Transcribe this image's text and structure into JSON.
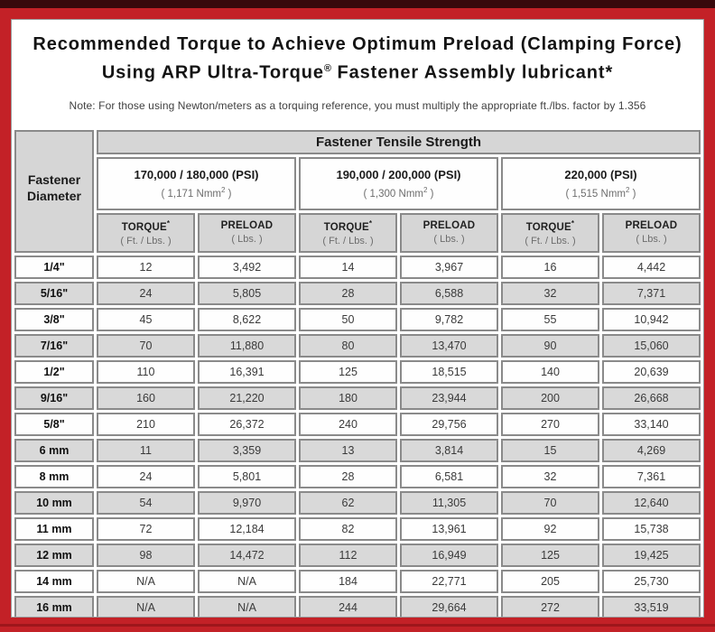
{
  "colors": {
    "frame_red": "#c32127",
    "top_band_dark_red": "#38090c",
    "bottom_line_red": "#9e161b",
    "header_gray": "#d6d6d6",
    "row_shade_gray": "#d9d9d9",
    "cell_border_gray": "#8a8a8a"
  },
  "title": {
    "line1": "Recommended Torque to Achieve Optimum Preload (Clamping Force)",
    "line2_a": "Using ARP Ultra-Torque",
    "line2_sup": "®",
    "line2_b": " Fastener Assembly lubricant*"
  },
  "note": "Note: For those using Newton/meters as a torquing reference, you must multiply the appropriate ft./lbs. factor by 1.356",
  "table": {
    "corner_line1": "Fastener",
    "corner_line2": "Diameter",
    "tensile_header": "Fastener Tensile Strength",
    "groups": [
      {
        "psi": "170,000 / 180,000 (PSI)",
        "nmm_a": "( 1,171 Nmm",
        "nmm_sup": "2",
        "nmm_b": " )"
      },
      {
        "psi": "190,000 / 200,000 (PSI)",
        "nmm_a": "( 1,300 Nmm",
        "nmm_sup": "2",
        "nmm_b": " )"
      },
      {
        "psi": "220,000 (PSI)",
        "nmm_a": "( 1,515 Nmm",
        "nmm_sup": "2",
        "nmm_b": " )"
      }
    ],
    "sub": {
      "torque_label": "TORQUE",
      "torque_sup": "*",
      "torque_unit": "( Ft. / Lbs. )",
      "preload_label": "PRELOAD",
      "preload_unit": "( Lbs. )"
    },
    "rows": [
      {
        "diameter": "1/4\"",
        "values": [
          "12",
          "3,492",
          "14",
          "3,967",
          "16",
          "4,442"
        ]
      },
      {
        "diameter": "5/16\"",
        "values": [
          "24",
          "5,805",
          "28",
          "6,588",
          "32",
          "7,371"
        ]
      },
      {
        "diameter": "3/8\"",
        "values": [
          "45",
          "8,622",
          "50",
          "9,782",
          "55",
          "10,942"
        ]
      },
      {
        "diameter": "7/16\"",
        "values": [
          "70",
          "11,880",
          "80",
          "13,470",
          "90",
          "15,060"
        ]
      },
      {
        "diameter": "1/2\"",
        "values": [
          "110",
          "16,391",
          "125",
          "18,515",
          "140",
          "20,639"
        ]
      },
      {
        "diameter": "9/16\"",
        "values": [
          "160",
          "21,220",
          "180",
          "23,944",
          "200",
          "26,668"
        ]
      },
      {
        "diameter": "5/8\"",
        "values": [
          "210",
          "26,372",
          "240",
          "29,756",
          "270",
          "33,140"
        ]
      },
      {
        "diameter": "6 mm",
        "values": [
          "11",
          "3,359",
          "13",
          "3,814",
          "15",
          "4,269"
        ]
      },
      {
        "diameter": "8 mm",
        "values": [
          "24",
          "5,801",
          "28",
          "6,581",
          "32",
          "7,361"
        ]
      },
      {
        "diameter": "10 mm",
        "values": [
          "54",
          "9,970",
          "62",
          "11,305",
          "70",
          "12,640"
        ]
      },
      {
        "diameter": "11 mm",
        "values": [
          "72",
          "12,184",
          "82",
          "13,961",
          "92",
          "15,738"
        ]
      },
      {
        "diameter": "12 mm",
        "values": [
          "98",
          "14,472",
          "112",
          "16,949",
          "125",
          "19,425"
        ]
      },
      {
        "diameter": "14 mm",
        "values": [
          "N/A",
          "N/A",
          "184",
          "22,771",
          "205",
          "25,730"
        ]
      },
      {
        "diameter": "16 mm",
        "values": [
          "N/A",
          "N/A",
          "244",
          "29,664",
          "272",
          "33,519"
        ]
      }
    ]
  }
}
